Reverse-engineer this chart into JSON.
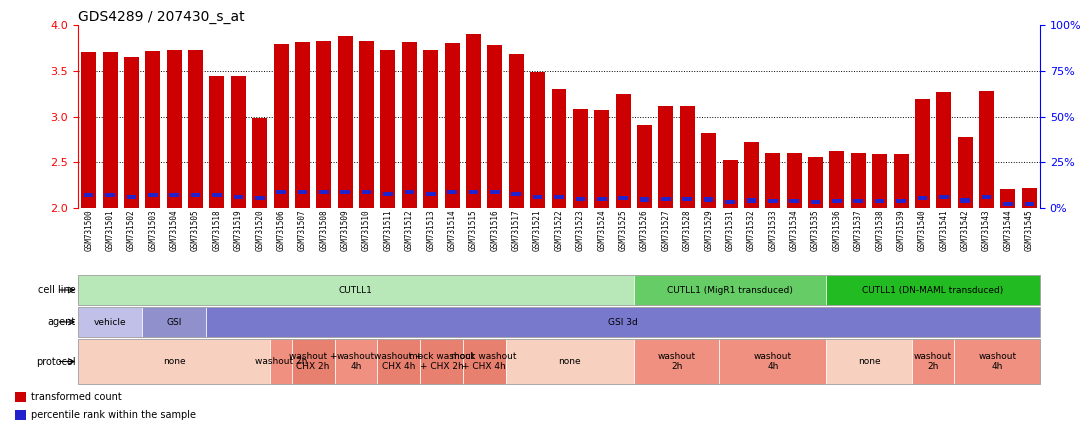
{
  "title": "GDS4289 / 207430_s_at",
  "samples": [
    "GSM731500",
    "GSM731501",
    "GSM731502",
    "GSM731503",
    "GSM731504",
    "GSM731505",
    "GSM731518",
    "GSM731519",
    "GSM731520",
    "GSM731506",
    "GSM731507",
    "GSM731508",
    "GSM731509",
    "GSM731510",
    "GSM731511",
    "GSM731512",
    "GSM731513",
    "GSM731514",
    "GSM731515",
    "GSM731516",
    "GSM731517",
    "GSM731521",
    "GSM731522",
    "GSM731523",
    "GSM731524",
    "GSM731525",
    "GSM731526",
    "GSM731527",
    "GSM731528",
    "GSM731529",
    "GSM731531",
    "GSM731532",
    "GSM731533",
    "GSM731534",
    "GSM731535",
    "GSM731536",
    "GSM731537",
    "GSM731538",
    "GSM731539",
    "GSM731540",
    "GSM731541",
    "GSM731542",
    "GSM731543",
    "GSM731544",
    "GSM731545"
  ],
  "red_values": [
    3.7,
    3.71,
    3.65,
    3.72,
    3.73,
    3.73,
    3.44,
    3.44,
    2.98,
    3.79,
    3.81,
    3.82,
    3.88,
    3.82,
    3.73,
    3.81,
    3.73,
    3.8,
    3.9,
    3.78,
    3.68,
    3.49,
    3.3,
    3.08,
    3.07,
    3.25,
    2.91,
    3.11,
    3.11,
    2.82,
    2.52,
    2.72,
    2.6,
    2.6,
    2.56,
    2.62,
    2.6,
    2.59,
    2.59,
    3.19,
    3.27,
    2.78,
    3.28,
    2.21,
    2.22
  ],
  "blue_values": [
    0.12,
    0.12,
    0.1,
    0.12,
    0.12,
    0.12,
    0.12,
    0.1,
    0.09,
    0.15,
    0.15,
    0.15,
    0.15,
    0.15,
    0.13,
    0.15,
    0.13,
    0.15,
    0.15,
    0.15,
    0.13,
    0.1,
    0.1,
    0.08,
    0.08,
    0.09,
    0.07,
    0.08,
    0.08,
    0.07,
    0.04,
    0.06,
    0.05,
    0.05,
    0.04,
    0.05,
    0.05,
    0.05,
    0.05,
    0.09,
    0.1,
    0.06,
    0.1,
    0.02,
    0.02
  ],
  "ymin": 2.0,
  "ymax": 4.0,
  "yticks_left": [
    2.0,
    2.5,
    3.0,
    3.5,
    4.0
  ],
  "yticks_right": [
    0,
    25,
    50,
    75,
    100
  ],
  "bar_color": "#cc0000",
  "blue_color": "#2222cc",
  "bg_color": "#ffffff",
  "cell_line_groups": [
    {
      "label": "CUTLL1",
      "start": 0,
      "end": 26,
      "color": "#b8e8b8"
    },
    {
      "label": "CUTLL1 (MigR1 transduced)",
      "start": 26,
      "end": 35,
      "color": "#66cc66"
    },
    {
      "label": "CUTLL1 (DN-MAML transduced)",
      "start": 35,
      "end": 45,
      "color": "#22bb22"
    }
  ],
  "agent_groups": [
    {
      "label": "vehicle",
      "start": 0,
      "end": 3,
      "color": "#c0c0e8"
    },
    {
      "label": "GSI",
      "start": 3,
      "end": 6,
      "color": "#9090cc"
    },
    {
      "label": "GSI 3d",
      "start": 6,
      "end": 45,
      "color": "#7878cc"
    }
  ],
  "protocol_groups": [
    {
      "label": "none",
      "start": 0,
      "end": 9,
      "color": "#f8d0c0"
    },
    {
      "label": "washout 2h",
      "start": 9,
      "end": 10,
      "color": "#f09080"
    },
    {
      "label": "washout +\nCHX 2h",
      "start": 10,
      "end": 12,
      "color": "#e88070"
    },
    {
      "label": "washout\n4h",
      "start": 12,
      "end": 14,
      "color": "#f09080"
    },
    {
      "label": "washout +\nCHX 4h",
      "start": 14,
      "end": 16,
      "color": "#e88070"
    },
    {
      "label": "mock washout\n+ CHX 2h",
      "start": 16,
      "end": 18,
      "color": "#e88070"
    },
    {
      "label": "mock washout\n+ CHX 4h",
      "start": 18,
      "end": 20,
      "color": "#e88070"
    },
    {
      "label": "none",
      "start": 20,
      "end": 26,
      "color": "#f8d0c0"
    },
    {
      "label": "washout\n2h",
      "start": 26,
      "end": 30,
      "color": "#f09080"
    },
    {
      "label": "washout\n4h",
      "start": 30,
      "end": 35,
      "color": "#f09080"
    },
    {
      "label": "none",
      "start": 35,
      "end": 39,
      "color": "#f8d0c0"
    },
    {
      "label": "washout\n2h",
      "start": 39,
      "end": 41,
      "color": "#f09080"
    },
    {
      "label": "washout\n4h",
      "start": 41,
      "end": 45,
      "color": "#f09080"
    }
  ],
  "row_labels": [
    "cell line",
    "agent",
    "protocol"
  ],
  "legend_items": [
    {
      "color": "#cc0000",
      "label": "transformed count"
    },
    {
      "color": "#2222cc",
      "label": "percentile rank within the sample"
    }
  ]
}
